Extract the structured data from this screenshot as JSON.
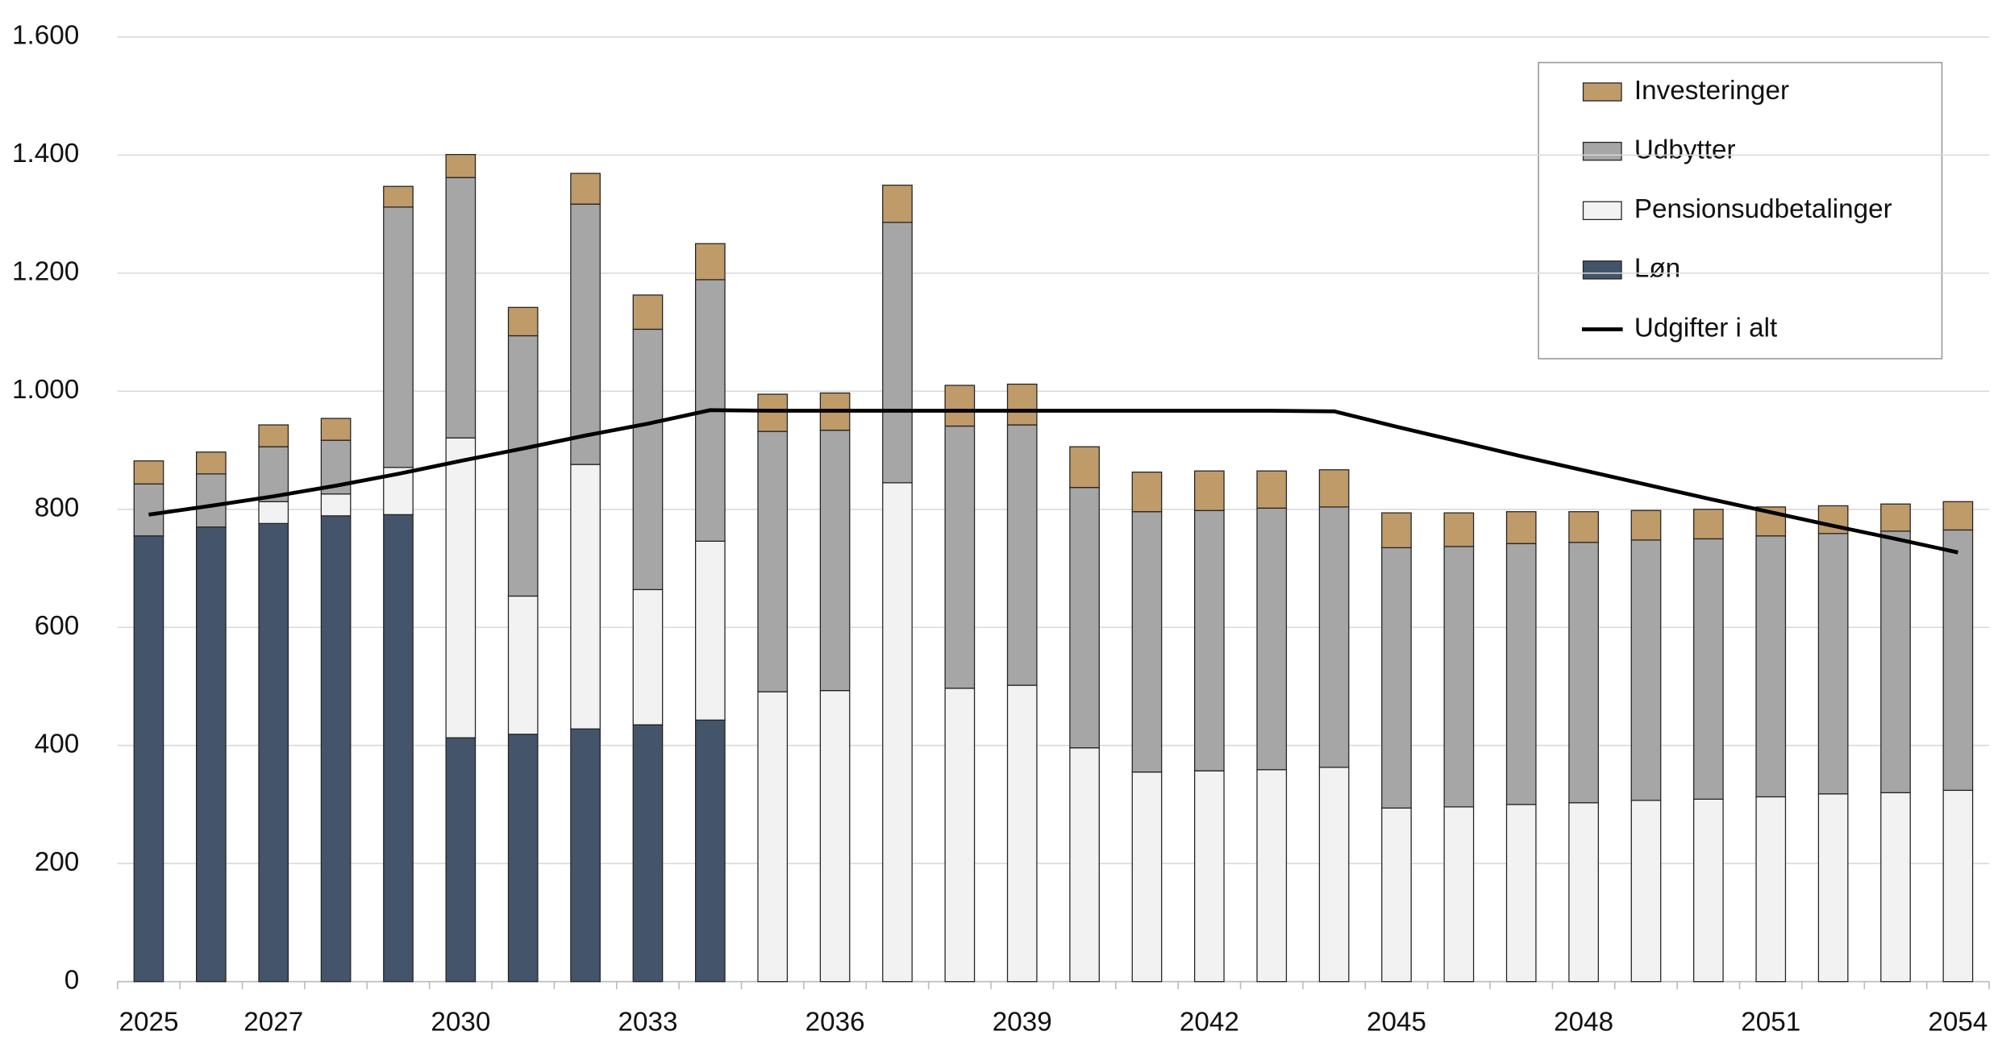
{
  "chart_data": {
    "type": "bar",
    "stacked": true,
    "categories": [
      "2025",
      null,
      "2027",
      null,
      null,
      "2030",
      null,
      null,
      "2033",
      null,
      null,
      "2036",
      null,
      null,
      "2039",
      null,
      null,
      "2042",
      null,
      null,
      "2045",
      null,
      null,
      "2048",
      null,
      null,
      "2051",
      null,
      null,
      "2054"
    ],
    "ylim": [
      0,
      1600
    ],
    "yticks": [
      0,
      200,
      400,
      600,
      800,
      {
        "value": 1000,
        "label": "1.000"
      },
      {
        "value": 1200,
        "label": "1.200"
      },
      {
        "value": 1400,
        "label": "1.400"
      },
      {
        "value": 1600,
        "label": "1.600"
      }
    ],
    "grid": true,
    "legend": "top-right",
    "series": [
      {
        "name": "Løn",
        "color": "#44546a",
        "values": [
          755,
          770,
          776,
          789,
          791,
          413,
          419,
          428,
          435,
          443,
          null,
          null,
          null,
          null,
          null,
          null,
          null,
          null,
          null,
          null,
          null,
          null,
          null,
          null,
          null,
          null,
          null,
          null,
          null,
          null
        ]
      },
      {
        "name": "Pensionsudbetalinger",
        "color": "#f2f2f2",
        "values": [
          null,
          null,
          37,
          37,
          80,
          508,
          234,
          448,
          229,
          303,
          491,
          493,
          845,
          497,
          502,
          396,
          355,
          357,
          359,
          363,
          294,
          296,
          300,
          303,
          307,
          309,
          313,
          318,
          320,
          324
        ]
      },
      {
        "name": "Udbytter",
        "color": "#a6a6a6",
        "values": [
          88,
          90,
          93,
          91,
          441,
          441,
          441,
          441,
          441,
          443,
          441,
          441,
          441,
          444,
          441,
          441,
          441,
          441,
          443,
          441,
          441,
          441,
          442,
          441,
          441,
          441,
          442,
          441,
          443,
          441
        ]
      },
      {
        "name": "Investeringer",
        "color": "#bf9b6a",
        "values": [
          39,
          37,
          37,
          37,
          35,
          39,
          48,
          52,
          58,
          61,
          63,
          63,
          63,
          69,
          69,
          69,
          67,
          67,
          63,
          63,
          59,
          57,
          54,
          52,
          50,
          50,
          49,
          47,
          46,
          48
        ]
      },
      {
        "name": "Udgifter i alt",
        "type": "line",
        "color": "#000000",
        "values": [
          791,
          806,
          822,
          840,
          860,
          882,
          903,
          925,
          945,
          968,
          967,
          967,
          967,
          967,
          967,
          967,
          967,
          967,
          967,
          966,
          940,
          915,
          890,
          866,
          842,
          818,
          795,
          772,
          750,
          727
        ]
      }
    ]
  }
}
